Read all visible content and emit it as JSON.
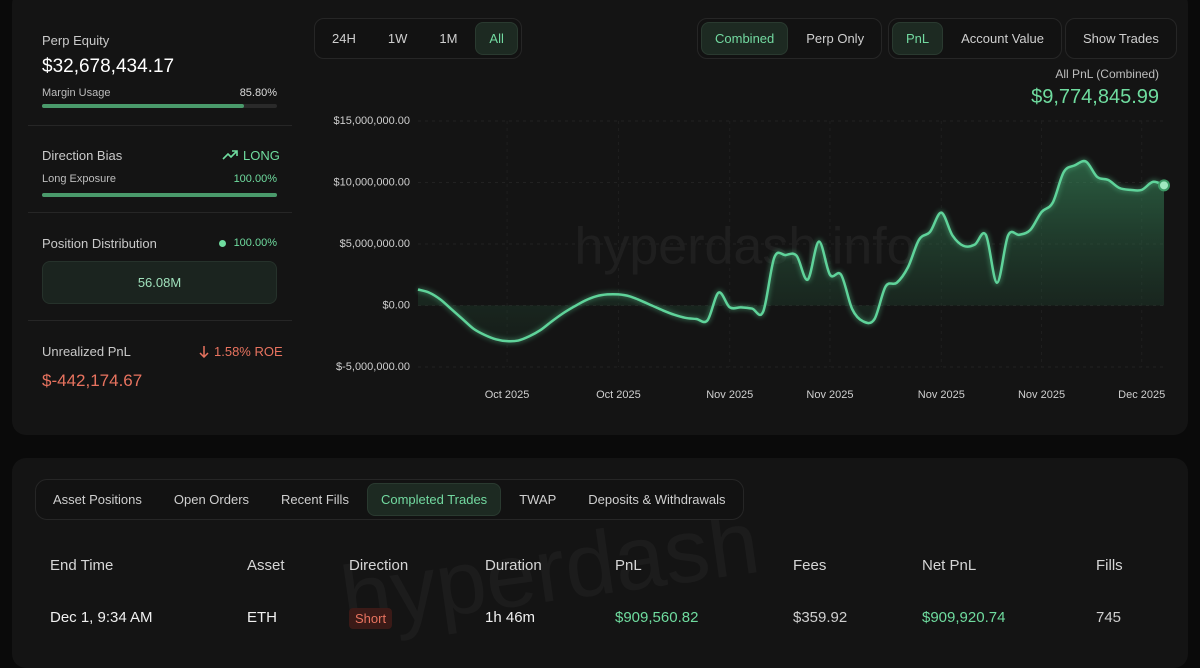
{
  "sidebar": {
    "perp_equity": {
      "label": "Perp Equity",
      "value": "$32,678,434.17"
    },
    "margin_usage": {
      "label": "Margin Usage",
      "value": "85.80%",
      "percent": 85.8
    },
    "direction_bias": {
      "label": "Direction Bias",
      "value": "LONG"
    },
    "long_exposure": {
      "label": "Long Exposure",
      "value": "100.00%",
      "percent": 100
    },
    "position_distribution": {
      "label": "Position Distribution",
      "value": "100.00%",
      "amount": "56.08M"
    },
    "unrealized_pnl": {
      "label": "Unrealized PnL",
      "roe": "1.58% ROE",
      "value": "$-442,174.67"
    }
  },
  "time_tabs": {
    "items": [
      "24H",
      "1W",
      "1M",
      "All"
    ],
    "active": 3
  },
  "mode_tabs": {
    "items": [
      "Combined",
      "Perp Only"
    ],
    "active": 0
  },
  "metric_tabs": {
    "items": [
      "PnL",
      "Account Value"
    ],
    "active": 0
  },
  "show_trades": "Show Trades",
  "chart_data": {
    "type": "area",
    "title": "All PnL (Combined)",
    "subtitle": "$9,774,845.99",
    "watermark": "hyperdash.info",
    "color": "#5fd39a",
    "categories": [
      null,
      null,
      null,
      null,
      null,
      null,
      null,
      null,
      "Oct 2025",
      null,
      null,
      null,
      null,
      null,
      null,
      null,
      null,
      null,
      "Oct 2025",
      null,
      null,
      null,
      null,
      null,
      null,
      null,
      null,
      null,
      "Nov 2025",
      null,
      null,
      null,
      null,
      null,
      null,
      null,
      null,
      "Nov 2025",
      null,
      null,
      null,
      null,
      null,
      null,
      null,
      null,
      null,
      "Nov 2025",
      null,
      null,
      null,
      null,
      null,
      null,
      null,
      null,
      "Nov 2025",
      null,
      null,
      null,
      null,
      null,
      null,
      null,
      null,
      "Dec 2025",
      null,
      null
    ],
    "values": [
      1300000,
      1050000,
      500000,
      -300000,
      -1100000,
      -1900000,
      -2400000,
      -2750000,
      -2900000,
      -2850000,
      -2500000,
      -2000000,
      -1300000,
      -650000,
      -100000,
      400000,
      750000,
      900000,
      900000,
      750000,
      400000,
      0,
      -400000,
      -750000,
      -1000000,
      -1100000,
      -1200000,
      1050000,
      -150000,
      -150000,
      -250000,
      -500000,
      3900000,
      4100000,
      4050000,
      2100000,
      5200000,
      2500000,
      2500000,
      -300000,
      -1300000,
      -1100000,
      1550000,
      1850000,
      3100000,
      5350000,
      6000000,
      7550000,
      5700000,
      4850000,
      4950000,
      5750000,
      1850000,
      5700000,
      5750000,
      6150000,
      7600000,
      8350000,
      10850000,
      11400000,
      11700000,
      10450000,
      10200000,
      9550000,
      9400000,
      9400000,
      10050000,
      9770000
    ],
    "ylim": [
      -5000000,
      15000000
    ],
    "yticks": [
      {
        "value": -5000000,
        "label": "$-5,000,000.00"
      },
      {
        "value": 0,
        "label": "$0.00"
      },
      {
        "value": 5000000,
        "label": "$5,000,000.00"
      },
      {
        "value": 10000000,
        "label": "$10,000,000.00"
      },
      {
        "value": 15000000,
        "label": "$15,000,000.00"
      }
    ],
    "grid": true
  },
  "bottom_tabs": {
    "items": [
      "Asset Positions",
      "Open Orders",
      "Recent Fills",
      "Completed Trades",
      "TWAP",
      "Deposits & Withdrawals"
    ],
    "active": 3
  },
  "table": {
    "watermark": "hyperdash",
    "columns": [
      "End Time",
      "Asset",
      "Direction",
      "Duration",
      "PnL",
      "Fees",
      "Net PnL",
      "Fills"
    ],
    "rows": [
      [
        "Dec 1, 9:34 AM",
        "ETH",
        "Short",
        "1h 46m",
        "$909,560.82",
        "$359.92",
        "$909,920.74",
        "745"
      ]
    ]
  }
}
